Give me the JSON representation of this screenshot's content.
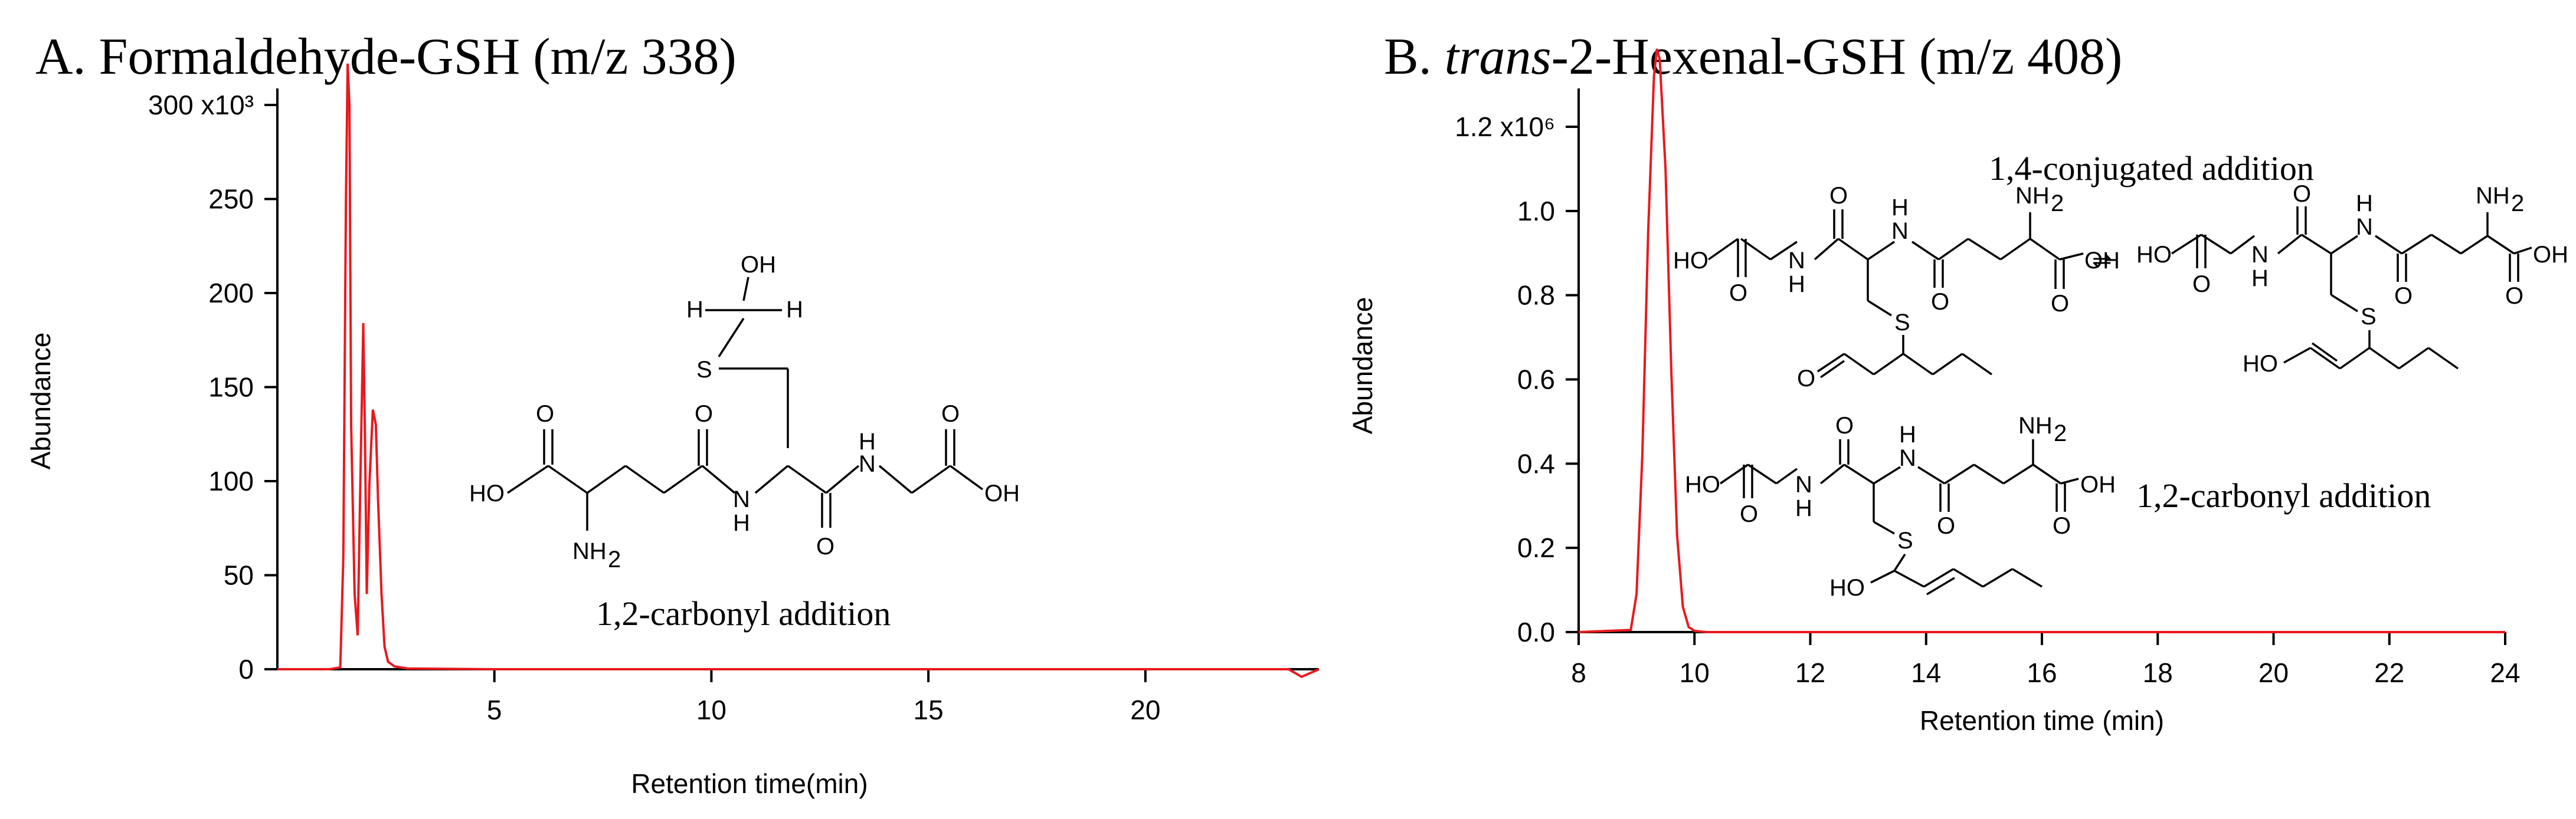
{
  "chart_data": [
    {
      "type": "line",
      "panel_label": "A. Formaldehyde-GSH (m/z 338)",
      "xlabel": "Retention time(min)",
      "ylabel": "Abundance",
      "xlim": [
        0,
        24
      ],
      "ylim": [
        0,
        320000
      ],
      "xticks": [
        5,
        10,
        15,
        20
      ],
      "yticks": [
        0,
        50000,
        100000,
        150000,
        200000,
        250000,
        300000
      ],
      "ytick_labels": [
        "0",
        "50",
        "100",
        "150",
        "200",
        "250",
        "300 x10³"
      ],
      "series": [
        {
          "color": "#e8191f",
          "x": [
            0,
            1.2,
            1.45,
            1.52,
            1.58,
            1.62,
            1.66,
            1.7,
            1.78,
            1.85,
            1.92,
            1.98,
            2.02,
            2.06,
            2.12,
            2.2,
            2.27,
            2.32,
            2.4,
            2.47,
            2.55,
            2.7,
            3.0,
            5,
            10,
            15,
            20,
            23.3,
            23.6,
            24
          ],
          "y": [
            0,
            0,
            1000,
            60000,
            250000,
            322000,
            300000,
            130000,
            40000,
            18000,
            110000,
            184000,
            120000,
            40000,
            98000,
            138000,
            130000,
            90000,
            40000,
            12000,
            4000,
            1500,
            400,
            0,
            0,
            0,
            0,
            0,
            -4000,
            0
          ]
        }
      ],
      "annotation": "1,2-carbonyl addition"
    },
    {
      "type": "line",
      "panel_label_prefix": "B. ",
      "panel_label_italic": "trans",
      "panel_label_suffix": "-2-Hexenal-GSH (m/z 408)",
      "xlabel": "Retention time (min)",
      "ylabel": "Abundance",
      "xlim": [
        8,
        24
      ],
      "ylim": [
        0,
        1400000
      ],
      "xticks": [
        8,
        10,
        12,
        14,
        16,
        18,
        20,
        22,
        24
      ],
      "yticks": [
        0,
        200000,
        400000,
        600000,
        800000,
        1000000,
        1200000
      ],
      "ytick_labels": [
        "0.0",
        "0.2",
        "0.4",
        "0.6",
        "0.8",
        "1.0",
        "1.2 x10⁶"
      ],
      "series": [
        {
          "color": "#e8191f",
          "x": [
            8,
            8.9,
            9.0,
            9.1,
            9.2,
            9.3,
            9.35,
            9.4,
            9.5,
            9.6,
            9.7,
            9.8,
            9.9,
            10.0,
            10.2,
            24
          ],
          "y": [
            0,
            5000,
            90000,
            420000,
            950000,
            1320000,
            1385000,
            1360000,
            1100000,
            620000,
            230000,
            60000,
            12000,
            3000,
            0,
            0
          ]
        }
      ],
      "annotations": [
        "1,4-conjugated addition",
        "1,2-carbonyl addition"
      ]
    }
  ],
  "structures": {
    "oh": "OH",
    "h": "H",
    "s": "S",
    "o": "O",
    "nh2_n": "NH",
    "nh2_sub": "2",
    "ho": "HO",
    "n": "N",
    "equilibrium": "⇌"
  }
}
